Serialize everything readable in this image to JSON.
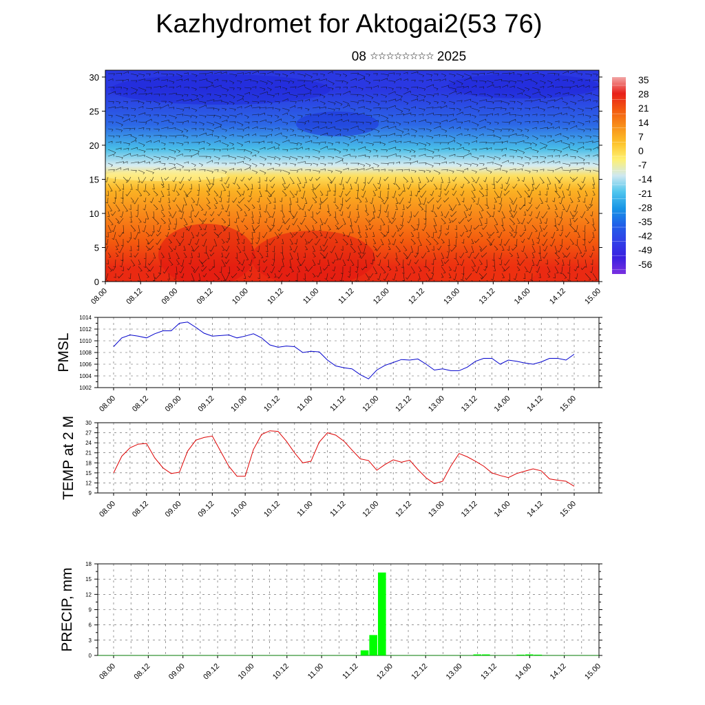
{
  "header": {
    "title": "Kazhydromet for Aktogai2(53 76)",
    "date_day": "08",
    "date_stars": "☆☆☆☆☆☆☆☆",
    "date_year": "2025"
  },
  "colors": {
    "pmsl_line": "#0000cc",
    "temp_line": "#dd0000",
    "precip_bar": "#00ff00",
    "grid": "#555555"
  },
  "chart_data": [
    {
      "type": "heatmap",
      "name": "cross-section temperature with wind barbs",
      "ylim": [
        0,
        31
      ],
      "yticks": [
        0,
        5,
        10,
        15,
        20,
        25,
        30
      ],
      "xticks": [
        "08.00",
        "08.12",
        "09.00",
        "09.12",
        "10.00",
        "10.12",
        "11.00",
        "11.12",
        "12.00",
        "12.12",
        "13.00",
        "13.12",
        "14.00",
        "14.12",
        "15.00"
      ],
      "colorbar": {
        "labels": [
          "35",
          "28",
          "21",
          "14",
          "7",
          "0",
          "-7",
          "-14",
          "-21",
          "-28",
          "-35",
          "-42",
          "-49",
          "-56"
        ],
        "stops": [
          "#f2a6a6",
          "#e8201a",
          "#f35a10",
          "#f8901a",
          "#fdc22a",
          "#fff070",
          "#cfe8f0",
          "#50c6ee",
          "#1896e6",
          "#2060e8",
          "#3040e8",
          "#3a20e0",
          "#7a30e0"
        ]
      },
      "bands": [
        {
          "level": "0-4",
          "color": "#ea2a12"
        },
        {
          "level": "4-8",
          "color": "#f45c0e"
        },
        {
          "level": "8-12",
          "color": "#f88a1a"
        },
        {
          "level": "12-15",
          "color": "#fbb424"
        },
        {
          "level": "15-16",
          "color": "#fde060"
        },
        {
          "level": "16-18",
          "color": "#d8ecf0"
        },
        {
          "level": "18-21",
          "color": "#48bde8"
        },
        {
          "level": "21-25",
          "color": "#2c68e6"
        },
        {
          "level": "25-31",
          "color": "#2a38e2"
        }
      ]
    },
    {
      "type": "line",
      "ylabel": "PMSL",
      "ylim": [
        1002,
        1014
      ],
      "yticks": [
        1002,
        1004,
        1006,
        1008,
        1010,
        1012,
        1014
      ],
      "xticks": [
        "08.00",
        "08.12",
        "09.00",
        "09.12",
        "10.00",
        "10.12",
        "11.00",
        "11.12",
        "12.00",
        "12.12",
        "13.00",
        "13.12",
        "14.00",
        "14.12",
        "15.00"
      ],
      "x_hours": [
        0,
        3,
        6,
        9,
        12,
        15,
        18,
        21,
        24,
        27,
        30,
        33,
        36,
        39,
        42,
        45,
        48,
        51,
        54,
        57,
        60,
        63,
        66,
        69,
        72,
        75,
        78,
        81,
        84,
        87,
        90,
        93,
        96,
        99,
        102,
        105,
        108,
        111,
        114,
        117,
        120,
        123,
        126,
        129,
        132,
        135,
        138,
        141,
        144,
        147,
        150,
        153,
        156,
        159,
        162,
        165,
        168
      ],
      "values": [
        1009.0,
        1010.5,
        1011.0,
        1010.8,
        1010.5,
        1011.2,
        1011.7,
        1011.7,
        1013.0,
        1013.2,
        1012.3,
        1011.3,
        1010.8,
        1010.9,
        1011.0,
        1010.5,
        1010.8,
        1011.2,
        1010.5,
        1009.3,
        1008.9,
        1009.1,
        1009.0,
        1008.0,
        1008.2,
        1008.1,
        1006.7,
        1005.7,
        1005.4,
        1005.2,
        1004.2,
        1003.5,
        1005.0,
        1005.8,
        1006.3,
        1006.8,
        1006.7,
        1006.9,
        1006.0,
        1005.0,
        1005.2,
        1004.9,
        1004.9,
        1005.5,
        1006.5,
        1007.0,
        1007.0,
        1006.0,
        1006.7,
        1006.5,
        1006.2,
        1006.0,
        1006.4,
        1007.0,
        1007.0,
        1006.7,
        1007.7
      ]
    },
    {
      "type": "line",
      "ylabel": "TEMP at 2 M",
      "ylim": [
        9,
        30
      ],
      "yticks": [
        9,
        12,
        15,
        18,
        21,
        24,
        27,
        30
      ],
      "xticks": [
        "08.00",
        "08.12",
        "09.00",
        "09.12",
        "10.00",
        "10.12",
        "11.00",
        "11.12",
        "12.00",
        "12.12",
        "13.00",
        "13.12",
        "14.00",
        "14.12",
        "15.00"
      ],
      "x_hours": [
        0,
        3,
        6,
        9,
        12,
        15,
        18,
        21,
        24,
        27,
        30,
        33,
        36,
        39,
        42,
        45,
        48,
        51,
        54,
        57,
        60,
        63,
        66,
        69,
        72,
        75,
        78,
        81,
        84,
        87,
        90,
        93,
        96,
        99,
        102,
        105,
        108,
        111,
        114,
        117,
        120,
        123,
        126,
        129,
        132,
        135,
        138,
        141,
        144,
        147,
        150,
        153,
        156,
        159,
        162,
        165,
        168
      ],
      "values": [
        15.0,
        20.0,
        22.5,
        23.6,
        23.8,
        19.5,
        16.5,
        14.8,
        15.2,
        21.5,
        24.8,
        25.6,
        26.0,
        21.5,
        17.0,
        14.0,
        14.0,
        22.0,
        26.5,
        27.6,
        27.4,
        24.5,
        21.0,
        18.0,
        18.5,
        24.2,
        27.0,
        26.3,
        24.5,
        21.8,
        19.2,
        18.7,
        15.8,
        17.5,
        18.9,
        18.2,
        18.8,
        16.0,
        13.5,
        11.8,
        12.5,
        17.0,
        20.8,
        19.8,
        18.5,
        17.0,
        15.0,
        14.2,
        13.6,
        14.8,
        15.5,
        16.2,
        15.6,
        13.2,
        12.8,
        12.5,
        11.0
      ]
    },
    {
      "type": "bar",
      "ylabel": "PRECIP, mm",
      "ylim": [
        0,
        18
      ],
      "yticks": [
        0,
        3,
        6,
        9,
        12,
        15,
        18
      ],
      "xticks": [
        "08.00",
        "08.12",
        "09.00",
        "09.12",
        "10.00",
        "10.12",
        "11.00",
        "11.12",
        "12.00",
        "12.12",
        "13.00",
        "13.12",
        "14.00",
        "14.12",
        "15.00"
      ],
      "bars": [
        {
          "x_hours": 87,
          "value": 1.0
        },
        {
          "x_hours": 90,
          "value": 4.0
        },
        {
          "x_hours": 93,
          "value": 16.3
        },
        {
          "x_hours": 126,
          "value": 0.2
        },
        {
          "x_hours": 129,
          "value": 0.2
        },
        {
          "x_hours": 141,
          "value": 0.15
        },
        {
          "x_hours": 144,
          "value": 0.2
        },
        {
          "x_hours": 147,
          "value": 0.15
        }
      ]
    }
  ]
}
